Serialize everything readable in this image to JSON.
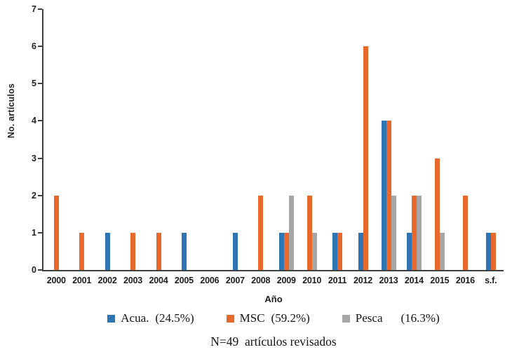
{
  "chart_data": {
    "type": "bar",
    "title": "",
    "xlabel": "Año",
    "ylabel": "No. artículos",
    "ylim": [
      0,
      7
    ],
    "yticks": [
      0,
      1,
      2,
      3,
      4,
      5,
      6,
      7
    ],
    "grid": false,
    "legend_position": "bottom",
    "categories": [
      "2000",
      "2001",
      "2002",
      "2003",
      "2004",
      "2005",
      "2006",
      "2007",
      "2008",
      "2009",
      "2010",
      "2011",
      "2012",
      "2013",
      "2014",
      "2015",
      "2016",
      "s.f."
    ],
    "series": [
      {
        "name": "Acua.",
        "pct": "(24.5%)",
        "color": "#2E75B6",
        "values": [
          0,
          0,
          1,
          0,
          0,
          1,
          0,
          1,
          0,
          1,
          0,
          1,
          1,
          4,
          1,
          0,
          0,
          1
        ]
      },
      {
        "name": "MSC",
        "pct": "(59.2%)",
        "color": "#E8692B",
        "values": [
          2,
          1,
          0,
          1,
          1,
          0,
          0,
          0,
          2,
          1,
          2,
          1,
          6,
          4,
          2,
          3,
          2,
          1
        ]
      },
      {
        "name": "Pesca",
        "pct": "(16.3%)",
        "color": "#A6A6A6",
        "values": [
          0,
          0,
          0,
          0,
          0,
          0,
          0,
          0,
          0,
          2,
          1,
          0,
          0,
          2,
          2,
          1,
          0,
          0
        ]
      }
    ],
    "note": "N=49  artículos revisados",
    "axis_color": "#404040"
  }
}
